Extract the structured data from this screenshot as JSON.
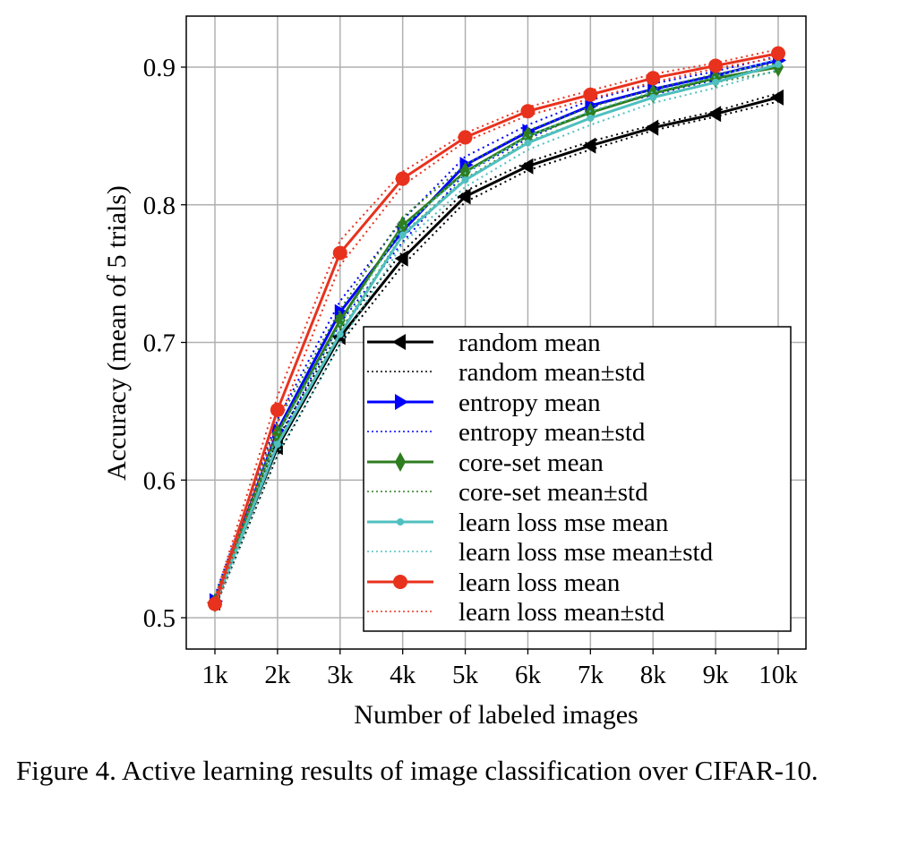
{
  "chart_data": {
    "type": "line",
    "xlabel": "Number of labeled images",
    "ylabel": "Accuracy (mean of 5 trials)",
    "categories": [
      "1k",
      "2k",
      "3k",
      "4k",
      "5k",
      "6k",
      "7k",
      "8k",
      "9k",
      "10k"
    ],
    "x": [
      1000,
      2000,
      3000,
      4000,
      5000,
      6000,
      7000,
      8000,
      9000,
      10000
    ],
    "ylim": [
      0.475,
      0.935
    ],
    "yticks": [
      0.5,
      0.6,
      0.7,
      0.8,
      0.9
    ],
    "ytick_labels": [
      "0.5",
      "0.6",
      "0.7",
      "0.8",
      "0.9"
    ],
    "grid": true,
    "legend_placement": "lower-right",
    "series": [
      {
        "name": "random mean",
        "std_label": "random mean±std",
        "color": "#000000",
        "marker": "triangle-left",
        "values": [
          0.511,
          0.624,
          0.704,
          0.761,
          0.806,
          0.828,
          0.843,
          0.856,
          0.866,
          0.878
        ],
        "std": [
          0.004,
          0.006,
          0.005,
          0.005,
          0.004,
          0.003,
          0.003,
          0.002,
          0.002,
          0.003
        ]
      },
      {
        "name": "entropy mean",
        "std_label": "entropy mean±std",
        "color": "#0000ff",
        "marker": "triangle-right",
        "values": [
          0.512,
          0.636,
          0.722,
          0.781,
          0.829,
          0.853,
          0.872,
          0.884,
          0.894,
          0.905
        ],
        "std": [
          0.004,
          0.008,
          0.008,
          0.008,
          0.006,
          0.005,
          0.004,
          0.004,
          0.003,
          0.003
        ]
      },
      {
        "name": "core-set mean",
        "std_label": "core-set mean±std",
        "color": "#2e7d1f",
        "marker": "diamond",
        "values": [
          0.511,
          0.634,
          0.716,
          0.785,
          0.824,
          0.85,
          0.867,
          0.881,
          0.892,
          0.9
        ],
        "std": [
          0.004,
          0.008,
          0.008,
          0.006,
          0.005,
          0.004,
          0.004,
          0.003,
          0.003,
          0.003
        ]
      },
      {
        "name": "learn loss mse mean",
        "std_label": "learn loss mse mean±std",
        "color": "#4fbfbf",
        "marker": "point",
        "values": [
          0.51,
          0.626,
          0.706,
          0.778,
          0.818,
          0.845,
          0.863,
          0.878,
          0.889,
          0.902
        ],
        "std": [
          0.004,
          0.007,
          0.007,
          0.006,
          0.005,
          0.005,
          0.005,
          0.004,
          0.004,
          0.004
        ]
      },
      {
        "name": "learn loss mean",
        "std_label": "learn loss mean±std",
        "color": "#e8321e",
        "marker": "circle",
        "values": [
          0.51,
          0.651,
          0.765,
          0.819,
          0.849,
          0.868,
          0.88,
          0.892,
          0.901,
          0.91
        ],
        "std": [
          0.004,
          0.01,
          0.009,
          0.005,
          0.003,
          0.003,
          0.003,
          0.003,
          0.002,
          0.003
        ]
      }
    ]
  },
  "caption": "Figure 4. Active learning results of image classification over CIFAR-10."
}
